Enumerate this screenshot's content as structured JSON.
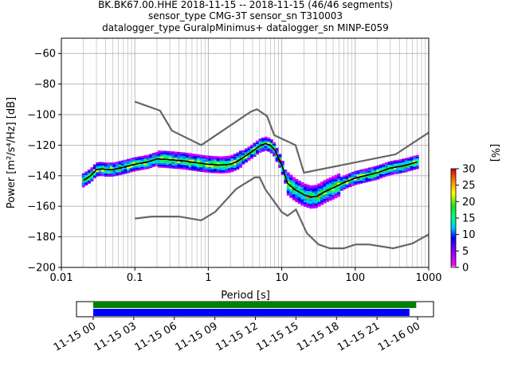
{
  "chart_data": {
    "type": "heatmap",
    "title_lines": [
      "BK.BK67.00.HHE   2018-11-15 -- 2018-11-15  (46/46 segments)",
      "sensor_type CMG-3T sensor_sn T310003",
      "datalogger_type GuralpMinimus+ datalogger_sn MINP-E059"
    ],
    "xlabel": "Period [s]",
    "ylabel": "Power [m²/s⁴/Hz] [dB]",
    "x_scale": "log",
    "xlim": [
      0.01,
      1000
    ],
    "ylim": [
      -200,
      -50
    ],
    "x_ticks": [
      0.01,
      0.1,
      1,
      10,
      100,
      1000
    ],
    "x_tick_labels": [
      "0.01",
      "0.1",
      "1",
      "10",
      "100",
      "1000"
    ],
    "y_ticks": [
      -200,
      -180,
      -160,
      -140,
      -120,
      -100,
      -80,
      -60
    ],
    "y_tick_labels": [
      "−200",
      "−180",
      "−160",
      "−140",
      "−120",
      "−100",
      "−80",
      "−60"
    ],
    "grid": true,
    "colorbar": {
      "label": "[%]",
      "min": 0,
      "max": 30,
      "ticks": [
        0,
        5,
        10,
        15,
        20,
        25,
        30
      ],
      "tick_labels": [
        "0",
        "5",
        "10",
        "15",
        "20",
        "25",
        "30"
      ]
    },
    "series": [
      {
        "role": "new-high-noise-model",
        "color": "#666666",
        "x": [
          0.1,
          0.22,
          0.32,
          0.8,
          3.8,
          4.6,
          6.3,
          7.9,
          15.4,
          20,
          354.8,
          10000
        ],
        "y": [
          -91.5,
          -97.4,
          -110.5,
          -120,
          -98,
          -96.5,
          -101,
          -113.5,
          -120,
          -138,
          -126,
          -80.1
        ]
      },
      {
        "role": "new-low-noise-model",
        "color": "#666666",
        "x": [
          0.1,
          0.17,
          0.4,
          0.8,
          1.24,
          2.4,
          4.3,
          5,
          6,
          10,
          12,
          15.6,
          21.9,
          31.6,
          45,
          70,
          101,
          154,
          328,
          600,
          10000
        ],
        "y": [
          -168,
          -166.7,
          -166.7,
          -169.2,
          -163.7,
          -148.6,
          -141.1,
          -141.1,
          -149,
          -163.8,
          -166.2,
          -162.1,
          -177.5,
          -185,
          -187.5,
          -187.5,
          -185,
          -185,
          -187.5,
          -184.4,
          -151.5
        ]
      },
      {
        "role": "mode",
        "color": "#000000",
        "x": [
          0.02,
          0.025,
          0.03,
          0.035,
          0.04,
          0.05,
          0.07,
          0.1,
          0.15,
          0.2,
          0.3,
          0.5,
          0.7,
          1,
          1.5,
          2,
          2.5,
          3,
          4,
          5,
          6,
          7,
          8,
          10,
          12,
          15,
          20,
          25,
          30,
          40,
          50,
          70,
          100,
          150,
          200,
          300,
          400,
          500,
          700
        ],
        "y": [
          -143,
          -140,
          -136,
          -135.5,
          -136,
          -136,
          -134.5,
          -132.5,
          -131,
          -129,
          -129.5,
          -130.5,
          -131.5,
          -132.5,
          -133,
          -132.5,
          -130.5,
          -128,
          -124,
          -120.5,
          -119,
          -120,
          -123,
          -133,
          -145,
          -149,
          -152.5,
          -154,
          -153.5,
          -150,
          -148,
          -144.5,
          -141.5,
          -139.5,
          -138,
          -135,
          -134,
          -133,
          -131
        ]
      }
    ],
    "timeline": {
      "tick_labels": [
        "11-15 00",
        "11-15 03",
        "11-15 06",
        "11-15 09",
        "11-15 12",
        "11-15 15",
        "11-15 18",
        "11-15 21",
        "11-16 00"
      ],
      "data_span_hours": [
        0,
        23.9
      ],
      "psd_span_hours": [
        0,
        23.4
      ],
      "colors": {
        "data": "#008000",
        "psd": "#0000ff"
      }
    }
  }
}
